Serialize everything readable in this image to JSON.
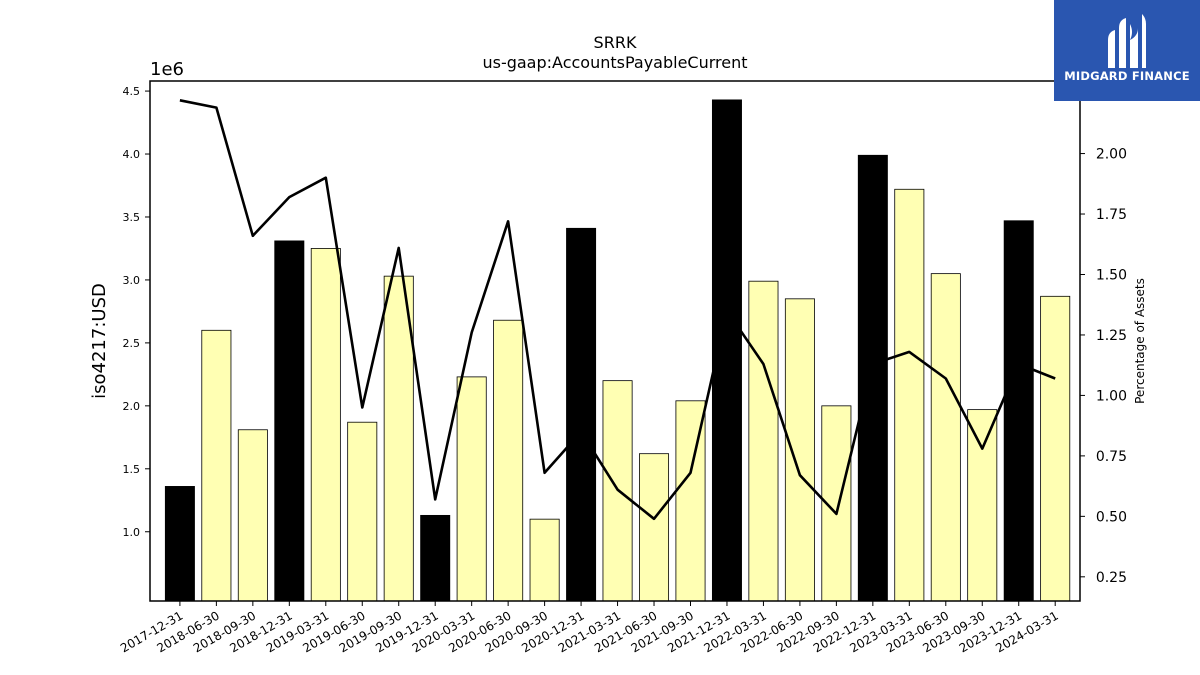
{
  "chart_data": {
    "type": "bar",
    "title": "SRRK",
    "subtitle": "us-gaap:AccountsPayableCurrent",
    "ylabel": "iso4217:USD",
    "y_offset_text": "1e6",
    "y2label": "Percentage of Assets",
    "ylim": [
      0.45,
      4.58
    ],
    "y2lim": [
      0.15,
      2.3
    ],
    "yticks": [
      "1.0",
      "1.5",
      "2.0",
      "2.5",
      "3.0",
      "3.5",
      "4.0",
      "4.5"
    ],
    "y2ticks": [
      "0.25",
      "0.50",
      "0.75",
      "1.00",
      "1.25",
      "1.50",
      "1.75",
      "2.00"
    ],
    "categories": [
      "2017-12-31",
      "2018-06-30",
      "2018-09-30",
      "2018-12-31",
      "2019-03-31",
      "2019-06-30",
      "2019-09-30",
      "2019-12-31",
      "2020-03-31",
      "2020-06-30",
      "2020-09-30",
      "2020-12-31",
      "2021-03-31",
      "2021-06-30",
      "2021-09-30",
      "2021-12-31",
      "2022-03-31",
      "2022-06-30",
      "2022-09-30",
      "2022-12-31",
      "2023-03-31",
      "2023-06-30",
      "2023-09-30",
      "2023-12-31",
      "2024-03-31"
    ],
    "series": [
      {
        "type": "bar",
        "values": [
          1.36,
          2.6,
          1.81,
          3.31,
          3.25,
          1.87,
          3.03,
          1.13,
          2.23,
          2.68,
          1.1,
          3.41,
          2.2,
          1.62,
          2.04,
          4.43,
          2.99,
          2.85,
          2.0,
          3.99,
          3.72,
          3.05,
          1.97,
          3.47,
          2.87
        ],
        "annual": [
          true,
          false,
          false,
          true,
          false,
          false,
          false,
          true,
          false,
          false,
          false,
          true,
          false,
          false,
          false,
          true,
          false,
          false,
          false,
          true,
          false,
          false,
          false,
          true,
          false
        ]
      },
      {
        "type": "line",
        "axis": "right",
        "values": [
          2.22,
          2.19,
          1.66,
          1.82,
          1.9,
          0.95,
          1.61,
          0.57,
          1.26,
          1.72,
          0.68,
          0.85,
          0.61,
          0.49,
          0.68,
          1.35,
          1.13,
          0.67,
          0.51,
          1.13,
          1.18,
          1.07,
          0.78,
          1.13,
          1.07
        ]
      }
    ],
    "colors": {
      "annual_bar": "#000000",
      "quarter_bar": "#ffffb3",
      "line": "#000000"
    }
  },
  "logo": {
    "text": "MIDGARD FINANCE",
    "bg": "#2a56b0"
  }
}
